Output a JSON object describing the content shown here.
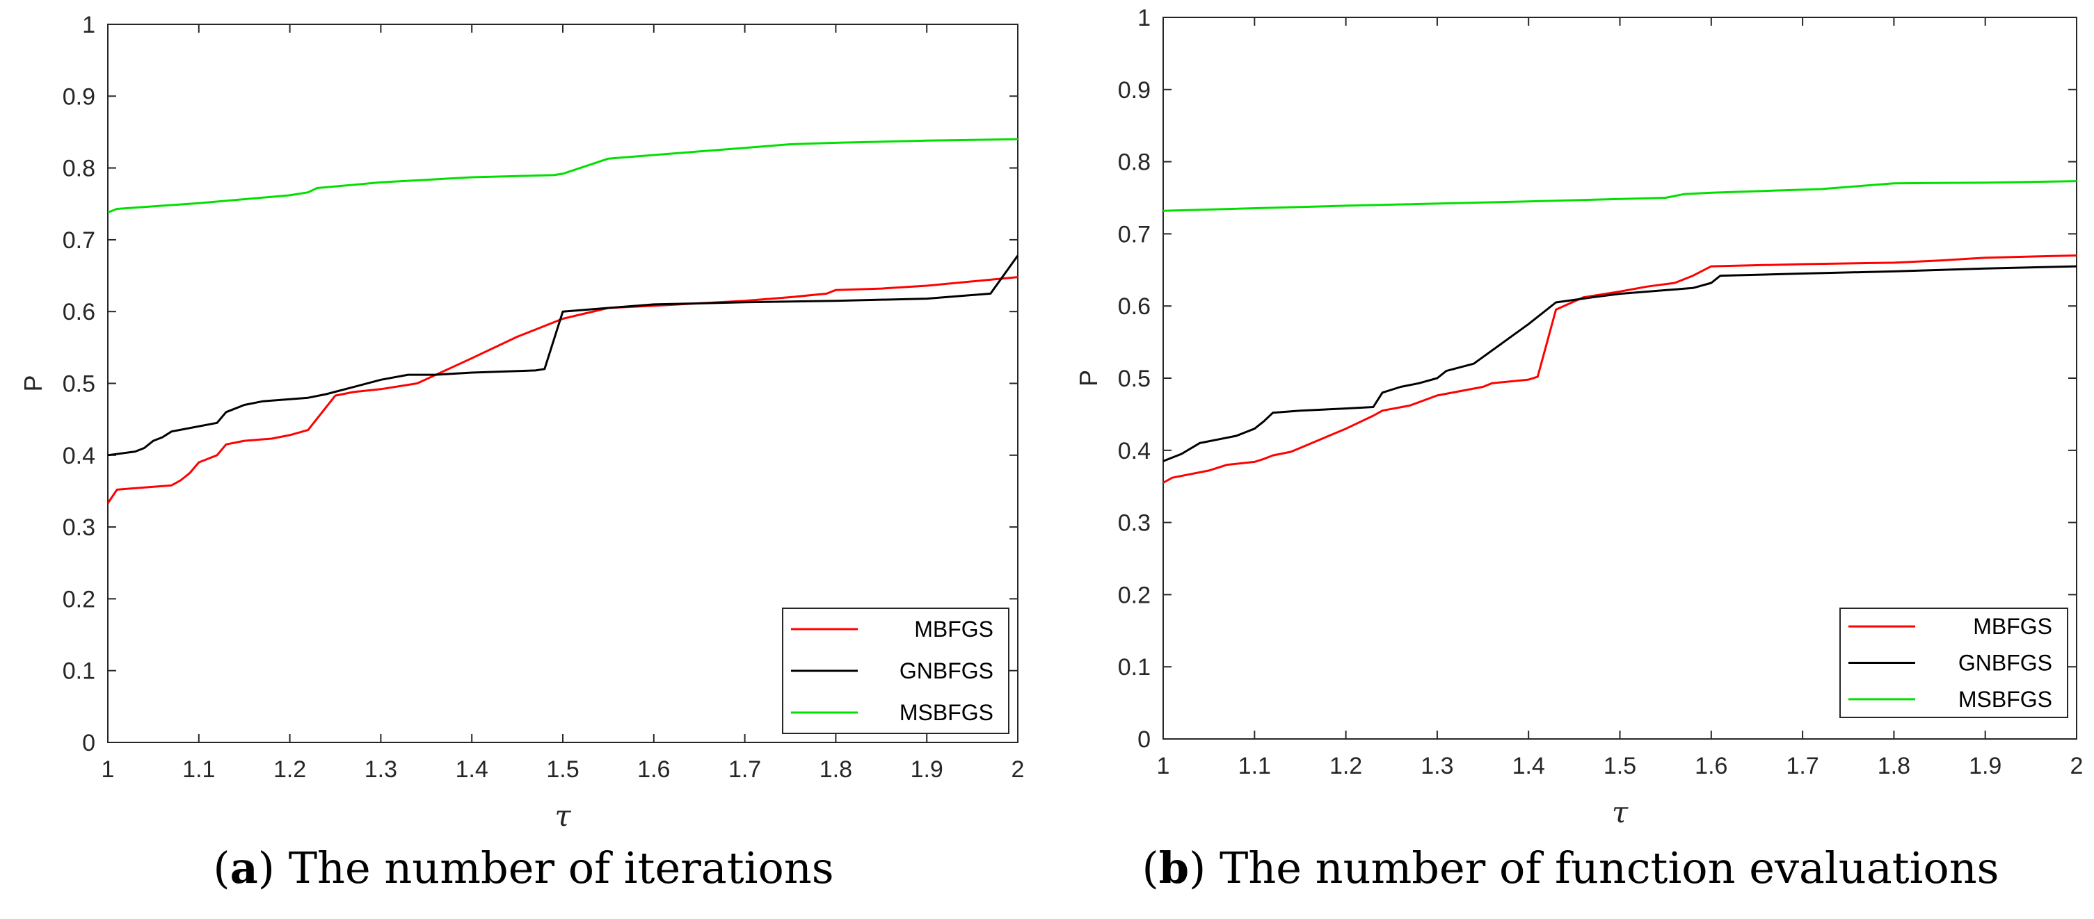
{
  "chart_data": [
    {
      "type": "line",
      "panel_label": "a",
      "caption": "The number of iterations",
      "xlabel": "τ",
      "ylabel": "P",
      "xlim": [
        1,
        2
      ],
      "ylim": [
        0,
        1
      ],
      "xticks": [
        1,
        1.1,
        1.2,
        1.3,
        1.4,
        1.5,
        1.6,
        1.7,
        1.8,
        1.9,
        2
      ],
      "xtick_labels": [
        "1",
        "1.1",
        "1.2",
        "1.3",
        "1.4",
        "1.5",
        "1.6",
        "1.7",
        "1.8",
        "1.9",
        "2"
      ],
      "yticks": [
        0,
        0.1,
        0.2,
        0.3,
        0.4,
        0.5,
        0.6,
        0.7,
        0.8,
        0.9,
        1
      ],
      "ytick_labels": [
        "0",
        "0.1",
        "0.2",
        "0.3",
        "0.4",
        "0.5",
        "0.6",
        "0.7",
        "0.8",
        "0.9",
        "1"
      ],
      "grid": false,
      "legend_position": "bottom-right",
      "series": [
        {
          "name": "MBFGS",
          "color": "#ff0000",
          "x": [
            1.0,
            1.01,
            1.03,
            1.07,
            1.08,
            1.09,
            1.1,
            1.11,
            1.12,
            1.13,
            1.15,
            1.18,
            1.2,
            1.22,
            1.25,
            1.27,
            1.3,
            1.34,
            1.4,
            1.45,
            1.5,
            1.55,
            1.6,
            1.7,
            1.75,
            1.79,
            1.8,
            1.85,
            1.9,
            2.0
          ],
          "y": [
            0.333,
            0.352,
            0.354,
            0.358,
            0.365,
            0.375,
            0.39,
            0.395,
            0.4,
            0.415,
            0.42,
            0.423,
            0.428,
            0.435,
            0.483,
            0.488,
            0.492,
            0.5,
            0.535,
            0.565,
            0.59,
            0.605,
            0.608,
            0.615,
            0.62,
            0.625,
            0.63,
            0.632,
            0.636,
            0.648
          ]
        },
        {
          "name": "GNBFGS",
          "color": "#000000",
          "x": [
            1.0,
            1.03,
            1.04,
            1.05,
            1.06,
            1.07,
            1.12,
            1.13,
            1.14,
            1.15,
            1.17,
            1.22,
            1.24,
            1.27,
            1.3,
            1.33,
            1.36,
            1.4,
            1.47,
            1.48,
            1.5,
            1.55,
            1.6,
            1.7,
            1.8,
            1.9,
            1.97,
            2.0
          ],
          "y": [
            0.4,
            0.405,
            0.41,
            0.42,
            0.425,
            0.433,
            0.445,
            0.46,
            0.465,
            0.47,
            0.475,
            0.48,
            0.485,
            0.495,
            0.505,
            0.512,
            0.512,
            0.515,
            0.518,
            0.52,
            0.6,
            0.605,
            0.61,
            0.613,
            0.615,
            0.618,
            0.625,
            0.678
          ]
        },
        {
          "name": "MSBFGS",
          "color": "#00e000",
          "x": [
            1.0,
            1.01,
            1.1,
            1.2,
            1.22,
            1.23,
            1.3,
            1.4,
            1.49,
            1.5,
            1.55,
            1.6,
            1.7,
            1.75,
            1.8,
            1.9,
            2.0
          ],
          "y": [
            0.738,
            0.743,
            0.751,
            0.762,
            0.766,
            0.772,
            0.78,
            0.787,
            0.79,
            0.792,
            0.813,
            0.818,
            0.828,
            0.833,
            0.835,
            0.838,
            0.84
          ]
        }
      ]
    },
    {
      "type": "line",
      "panel_label": "b",
      "caption": "The number of function evaluations",
      "xlabel": "τ",
      "ylabel": "P",
      "xlim": [
        1,
        2
      ],
      "ylim": [
        0,
        1
      ],
      "xticks": [
        1,
        1.1,
        1.2,
        1.3,
        1.4,
        1.5,
        1.6,
        1.7,
        1.8,
        1.9,
        2
      ],
      "xtick_labels": [
        "1",
        "1.1",
        "1.2",
        "1.3",
        "1.4",
        "1.5",
        "1.6",
        "1.7",
        "1.8",
        "1.9",
        "2"
      ],
      "yticks": [
        0,
        0.1,
        0.2,
        0.3,
        0.4,
        0.5,
        0.6,
        0.7,
        0.8,
        0.9,
        1
      ],
      "ytick_labels": [
        "0",
        "0.1",
        "0.2",
        "0.3",
        "0.4",
        "0.5",
        "0.6",
        "0.7",
        "0.8",
        "0.9",
        "1"
      ],
      "grid": false,
      "legend_position": "bottom-right",
      "series": [
        {
          "name": "MBFGS",
          "color": "#ff0000",
          "x": [
            1.0,
            1.01,
            1.05,
            1.07,
            1.1,
            1.11,
            1.12,
            1.14,
            1.2,
            1.23,
            1.24,
            1.27,
            1.3,
            1.35,
            1.36,
            1.4,
            1.41,
            1.43,
            1.46,
            1.5,
            1.53,
            1.56,
            1.58,
            1.6,
            1.7,
            1.8,
            1.85,
            1.9,
            2.0
          ],
          "y": [
            0.355,
            0.362,
            0.372,
            0.38,
            0.384,
            0.388,
            0.393,
            0.398,
            0.43,
            0.448,
            0.455,
            0.462,
            0.476,
            0.488,
            0.493,
            0.498,
            0.502,
            0.595,
            0.612,
            0.62,
            0.627,
            0.632,
            0.642,
            0.655,
            0.658,
            0.66,
            0.663,
            0.667,
            0.67
          ]
        },
        {
          "name": "GNBFGS",
          "color": "#000000",
          "x": [
            1.0,
            1.02,
            1.04,
            1.06,
            1.08,
            1.1,
            1.11,
            1.12,
            1.15,
            1.2,
            1.23,
            1.24,
            1.26,
            1.28,
            1.3,
            1.31,
            1.34,
            1.4,
            1.43,
            1.47,
            1.5,
            1.55,
            1.58,
            1.6,
            1.61,
            1.7,
            1.8,
            1.9,
            2.0
          ],
          "y": [
            0.385,
            0.395,
            0.41,
            0.415,
            0.42,
            0.43,
            0.44,
            0.452,
            0.455,
            0.458,
            0.46,
            0.48,
            0.488,
            0.493,
            0.5,
            0.51,
            0.52,
            0.575,
            0.605,
            0.612,
            0.617,
            0.622,
            0.625,
            0.632,
            0.642,
            0.645,
            0.648,
            0.652,
            0.655
          ]
        },
        {
          "name": "MSBFGS",
          "color": "#00e000",
          "x": [
            1.0,
            1.2,
            1.4,
            1.55,
            1.57,
            1.6,
            1.72,
            1.75,
            1.78,
            1.8,
            1.9,
            2.0
          ],
          "y": [
            0.732,
            0.739,
            0.745,
            0.75,
            0.755,
            0.757,
            0.762,
            0.765,
            0.768,
            0.77,
            0.771,
            0.773
          ]
        }
      ]
    }
  ]
}
